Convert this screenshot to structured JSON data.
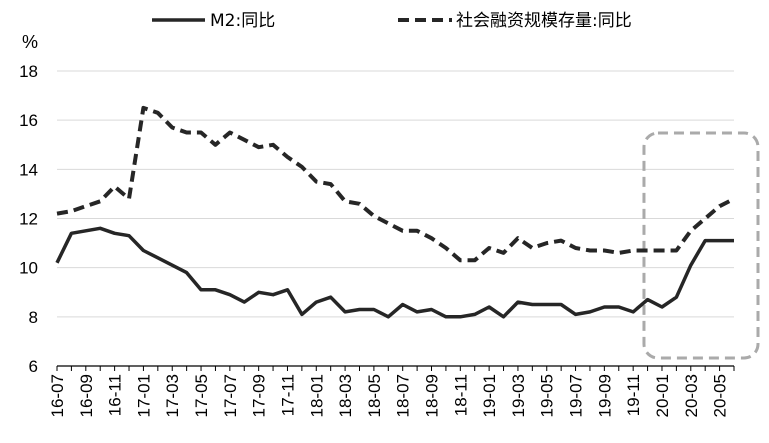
{
  "chart_data": {
    "type": "line",
    "unit_label": "%",
    "ylim": [
      6,
      18
    ],
    "y_ticks": [
      6,
      8,
      10,
      12,
      14,
      16,
      18
    ],
    "grid": "horizontal",
    "legend_position": "top",
    "x": [
      "16-07",
      "16-08",
      "16-09",
      "16-10",
      "16-11",
      "16-12",
      "17-01",
      "17-02",
      "17-03",
      "17-04",
      "17-05",
      "17-06",
      "17-07",
      "17-08",
      "17-09",
      "17-10",
      "17-11",
      "17-12",
      "18-01",
      "18-02",
      "18-03",
      "18-04",
      "18-05",
      "18-06",
      "18-07",
      "18-08",
      "18-09",
      "18-10",
      "18-11",
      "18-12",
      "19-01",
      "19-02",
      "19-03",
      "19-04",
      "19-05",
      "19-06",
      "19-07",
      "19-08",
      "19-09",
      "19-10",
      "19-11",
      "19-12",
      "20-01",
      "20-02",
      "20-03",
      "20-04",
      "20-05",
      "20-06"
    ],
    "x_tick_labels": [
      "16-07",
      "16-09",
      "16-11",
      "17-01",
      "17-03",
      "17-05",
      "17-07",
      "17-09",
      "17-11",
      "18-01",
      "18-03",
      "18-05",
      "18-07",
      "18-09",
      "18-11",
      "19-01",
      "19-03",
      "19-05",
      "19-07",
      "19-09",
      "19-11",
      "20-01",
      "20-03",
      "20-05"
    ],
    "series": [
      {
        "name": "M2:同比",
        "style": "solid",
        "color": "#262626",
        "values": [
          10.2,
          11.4,
          11.5,
          11.6,
          11.4,
          11.3,
          10.7,
          10.4,
          10.1,
          9.8,
          9.1,
          9.1,
          8.9,
          8.6,
          9.0,
          8.9,
          9.1,
          8.1,
          8.6,
          8.8,
          8.2,
          8.3,
          8.3,
          8.0,
          8.5,
          8.2,
          8.3,
          8.0,
          8.0,
          8.1,
          8.4,
          8.0,
          8.6,
          8.5,
          8.5,
          8.5,
          8.1,
          8.2,
          8.4,
          8.4,
          8.2,
          8.7,
          8.4,
          8.8,
          10.1,
          11.1,
          11.1,
          11.1
        ]
      },
      {
        "name": "社会融资规模存量:同比",
        "style": "dashed",
        "color": "#262626",
        "values": [
          12.2,
          12.3,
          12.5,
          12.7,
          13.3,
          12.8,
          16.5,
          16.3,
          15.7,
          15.5,
          15.5,
          15.0,
          15.5,
          15.2,
          14.9,
          15.0,
          14.5,
          14.1,
          13.5,
          13.4,
          12.7,
          12.6,
          12.1,
          11.8,
          11.5,
          11.5,
          11.2,
          10.8,
          10.3,
          10.3,
          10.8,
          10.6,
          11.2,
          10.8,
          11.0,
          11.1,
          10.8,
          10.7,
          10.7,
          10.6,
          10.7,
          10.7,
          10.7,
          10.7,
          11.5,
          12.0,
          12.5,
          12.8
        ]
      }
    ],
    "highlight_box": {
      "x_start": "20-01",
      "x_end": "20-06",
      "style": "dashed rounded",
      "color": "#aaaaaa"
    }
  }
}
